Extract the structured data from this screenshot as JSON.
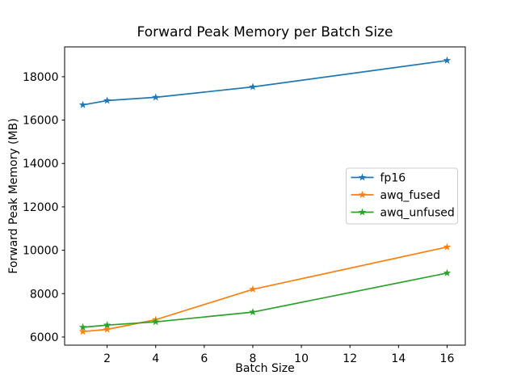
{
  "figure": {
    "background": "#ffffff",
    "text_color": "#000000",
    "spine_color": "#000000",
    "legend_border_color": "#cccccc"
  },
  "chart_data": {
    "type": "line",
    "title": "Forward Peak Memory per Batch Size",
    "xlabel": "Batch Size",
    "ylabel": "Forward Peak Memory (MB)",
    "x": [
      1,
      2,
      4,
      8,
      16
    ],
    "series": [
      {
        "name": "fp16",
        "color": "#1f77b4",
        "marker": "star",
        "values": [
          16700,
          16900,
          17050,
          17530,
          18750
        ]
      },
      {
        "name": "awq_fused",
        "color": "#ff7f0e",
        "marker": "star",
        "values": [
          6250,
          6350,
          6800,
          8200,
          10150
        ]
      },
      {
        "name": "awq_unfused",
        "color": "#2ca02c",
        "marker": "star",
        "values": [
          6450,
          6550,
          6700,
          7150,
          8950
        ]
      }
    ],
    "xlim": [
      0.25,
      16.75
    ],
    "ylim": [
      5625,
      19375
    ],
    "xticks": [
      2,
      4,
      6,
      8,
      10,
      12,
      14,
      16
    ],
    "yticks": [
      6000,
      8000,
      10000,
      12000,
      14000,
      16000,
      18000
    ],
    "grid": false,
    "legend": {
      "position": "center-right",
      "entries": [
        "fp16",
        "awq_fused",
        "awq_unfused"
      ]
    }
  }
}
